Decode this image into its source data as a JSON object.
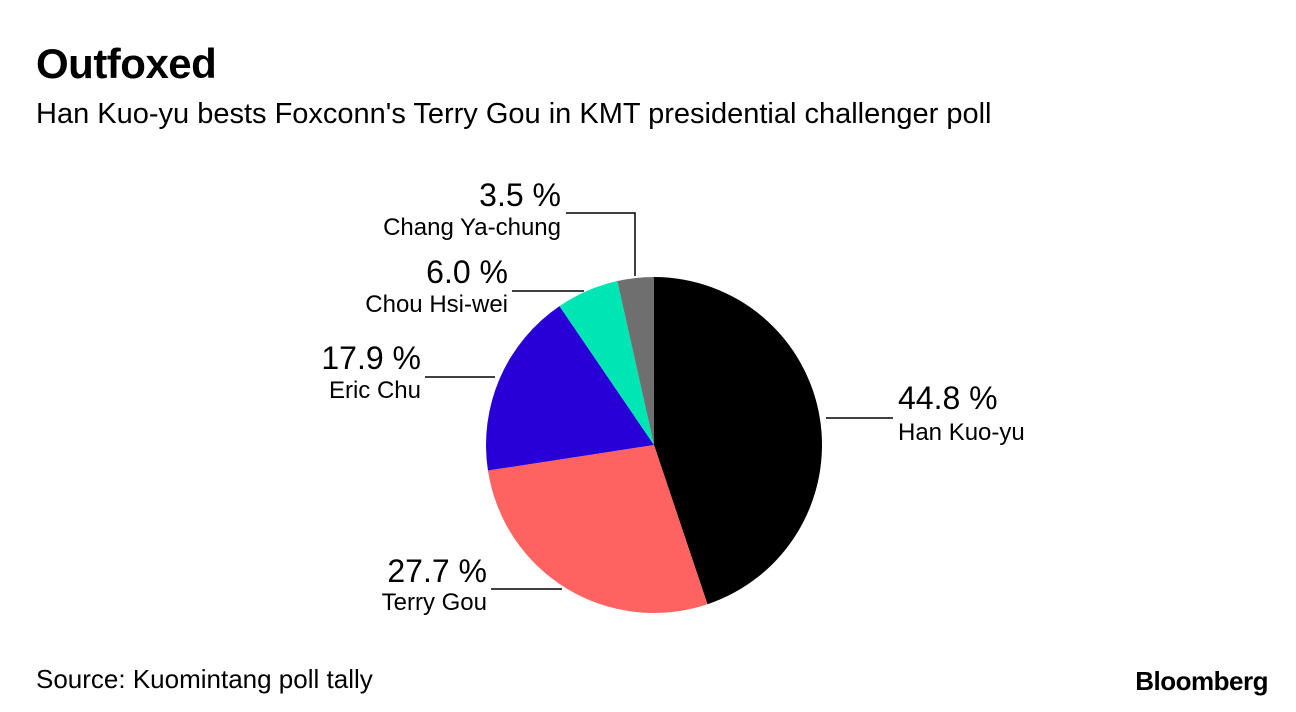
{
  "chart_data": {
    "type": "pie",
    "title": "Outfoxed",
    "subtitle": "Han Kuo-yu bests Foxconn's Terry Gou in KMT presidential challenger poll",
    "slices": [
      {
        "name": "Han Kuo-yu",
        "value": 44.8,
        "label": "44.8 %",
        "color": "#000000"
      },
      {
        "name": "Terry Gou",
        "value": 27.7,
        "label": "27.7 %",
        "color": "#ff6361"
      },
      {
        "name": "Eric Chu",
        "value": 17.9,
        "label": "17.9 %",
        "color": "#2800d7"
      },
      {
        "name": "Chou Hsi-wei",
        "value": 6.0,
        "label": "6.0 %",
        "color": "#00e5b4"
      },
      {
        "name": "Chang Ya-chung",
        "value": 3.5,
        "label": "3.5 %",
        "color": "#6f6f6f"
      }
    ],
    "start": "12 o'clock",
    "direction": "clockwise"
  },
  "footer": {
    "source": "Source: Kuomintang poll tally",
    "logo": "Bloomberg"
  }
}
